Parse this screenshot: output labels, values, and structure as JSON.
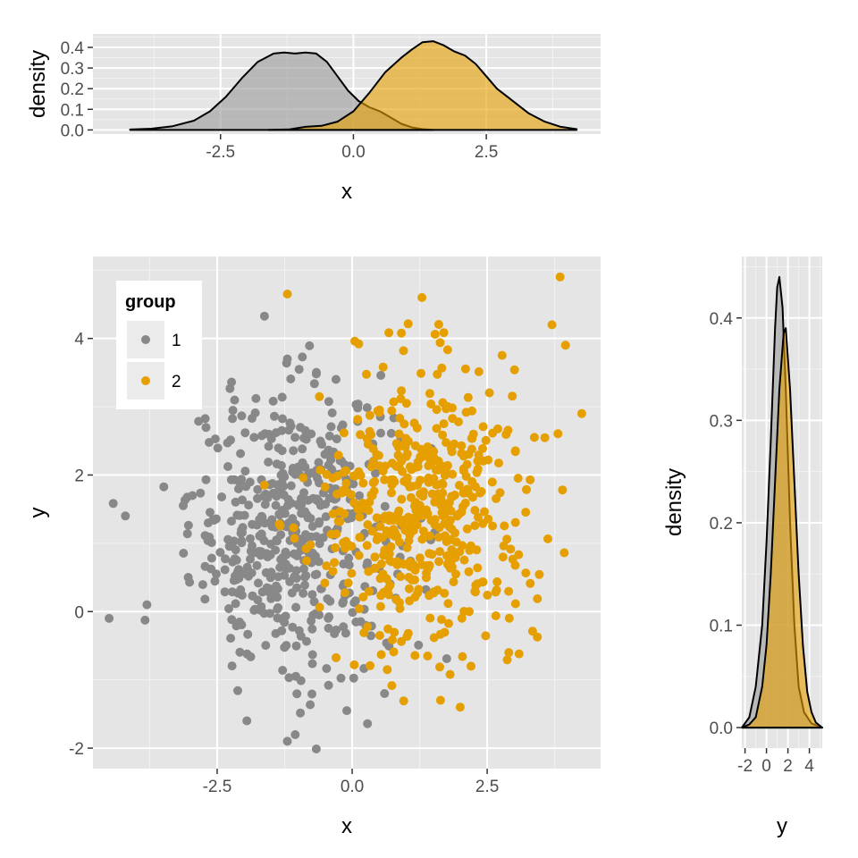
{
  "chart_data": [
    {
      "id": "top-density",
      "type": "area",
      "subtype": "density",
      "xlabel": "x",
      "ylabel": "density",
      "xlim": [
        -4.9,
        4.65
      ],
      "ylim": [
        -0.02,
        0.465
      ],
      "x_ticks": [
        -2.5,
        0.0,
        2.5
      ],
      "y_ticks": [
        0.0,
        0.1,
        0.2,
        0.3,
        0.4
      ],
      "x_tick_labels": [
        "-2.5",
        "0.0",
        "2.5"
      ],
      "y_tick_labels": [
        "0.0",
        "0.1",
        "0.2",
        "0.3",
        "0.4"
      ],
      "grid": true,
      "series": [
        {
          "group": "1",
          "color": "#999999",
          "x": [
            -4.2,
            -3.8,
            -3.4,
            -3.0,
            -2.7,
            -2.4,
            -2.1,
            -1.8,
            -1.5,
            -1.3,
            -1.1,
            -0.9,
            -0.7,
            -0.5,
            -0.3,
            -0.1,
            0.1,
            0.3,
            0.5,
            0.7,
            0.9,
            1.1,
            1.3,
            1.5
          ],
          "y": [
            0.002,
            0.006,
            0.018,
            0.045,
            0.09,
            0.16,
            0.25,
            0.33,
            0.37,
            0.375,
            0.37,
            0.375,
            0.37,
            0.33,
            0.26,
            0.19,
            0.14,
            0.11,
            0.09,
            0.06,
            0.03,
            0.012,
            0.004,
            0.0
          ]
        },
        {
          "group": "2",
          "color": "#E69F00",
          "x": [
            -1.6,
            -1.2,
            -0.9,
            -0.6,
            -0.3,
            0.0,
            0.3,
            0.6,
            0.9,
            1.1,
            1.3,
            1.5,
            1.7,
            1.9,
            2.1,
            2.3,
            2.5,
            2.7,
            3.0,
            3.3,
            3.6,
            3.9,
            4.2
          ],
          "y": [
            0.0,
            0.003,
            0.015,
            0.02,
            0.04,
            0.09,
            0.18,
            0.28,
            0.35,
            0.39,
            0.425,
            0.43,
            0.41,
            0.38,
            0.36,
            0.32,
            0.26,
            0.2,
            0.14,
            0.08,
            0.04,
            0.015,
            0.004
          ]
        }
      ]
    },
    {
      "id": "scatter",
      "type": "scatter",
      "xlabel": "x",
      "ylabel": "y",
      "xlim": [
        -4.8,
        4.6
      ],
      "ylim": [
        -2.3,
        5.2
      ],
      "x_ticks": [
        -2.5,
        0.0,
        2.5
      ],
      "y_ticks": [
        -2,
        0,
        2,
        4
      ],
      "x_tick_labels": [
        "-2.5",
        "0.0",
        "2.5"
      ],
      "y_tick_labels": [
        "-2",
        "0",
        "2",
        "4"
      ],
      "grid": true,
      "legend": {
        "title": "group",
        "placement": "top-left",
        "entries": [
          "1",
          "2"
        ]
      },
      "series": [
        {
          "name": "1",
          "color": "#888888",
          "n": 500,
          "mean_x": -1.1,
          "sd_x": 0.95,
          "mean_y": 1.2,
          "sd_y": 1.05,
          "notable_points": [
            [
              -4.5,
              -0.1
            ],
            [
              -4.2,
              1.4
            ],
            [
              -3.8,
              0.1
            ],
            [
              -1.2,
              3.7
            ],
            [
              -0.3,
              3.4
            ],
            [
              -0.1,
              -1.45
            ],
            [
              -1.2,
              -1.9
            ],
            [
              -1.95,
              -1.6
            ],
            [
              0.6,
              -1.2
            ]
          ]
        },
        {
          "name": "2",
          "color": "#E69F00",
          "n": 500,
          "mean_x": 1.3,
          "sd_x": 0.95,
          "mean_y": 1.5,
          "sd_y": 1.05,
          "notable_points": [
            [
              -1.2,
              4.65
            ],
            [
              3.85,
              4.9
            ],
            [
              3.7,
              4.2
            ],
            [
              3.95,
              3.9
            ],
            [
              4.25,
              2.9
            ],
            [
              2.0,
              -1.4
            ],
            [
              2.2,
              -0.8
            ],
            [
              2.9,
              -0.6
            ],
            [
              0.65,
              -0.85
            ]
          ]
        }
      ]
    },
    {
      "id": "right-density",
      "type": "area",
      "subtype": "density",
      "xlabel": "y",
      "ylabel": "density",
      "xlim": [
        -2.3,
        5.2
      ],
      "ylim": [
        -0.02,
        0.46
      ],
      "x_ticks": [
        -2,
        0,
        2,
        4
      ],
      "y_ticks": [
        0.0,
        0.1,
        0.2,
        0.3,
        0.4
      ],
      "x_tick_labels": [
        "-2",
        "0",
        "2",
        "4"
      ],
      "y_tick_labels": [
        "0.0",
        "0.1",
        "0.2",
        "0.3",
        "0.4"
      ],
      "grid": true,
      "series": [
        {
          "group": "1",
          "color": "#999999",
          "x": [
            -2.3,
            -1.6,
            -1.0,
            -0.4,
            0.0,
            0.4,
            0.8,
            1.0,
            1.2,
            1.5,
            1.8,
            2.2,
            2.6,
            3.0,
            3.5,
            4.2,
            5.2
          ],
          "y": [
            0.0,
            0.01,
            0.04,
            0.1,
            0.18,
            0.28,
            0.39,
            0.43,
            0.44,
            0.41,
            0.33,
            0.2,
            0.1,
            0.04,
            0.015,
            0.004,
            0.0
          ]
        },
        {
          "group": "2",
          "color": "#E69F00",
          "x": [
            -2.3,
            -1.6,
            -1.0,
            -0.4,
            0.0,
            0.4,
            0.8,
            1.2,
            1.6,
            1.8,
            2.2,
            2.6,
            3.0,
            3.4,
            3.8,
            4.2,
            4.6,
            5.2
          ],
          "y": [
            0.0,
            0.003,
            0.01,
            0.04,
            0.08,
            0.15,
            0.24,
            0.33,
            0.385,
            0.39,
            0.33,
            0.24,
            0.15,
            0.08,
            0.035,
            0.015,
            0.005,
            0.0
          ]
        }
      ]
    }
  ]
}
